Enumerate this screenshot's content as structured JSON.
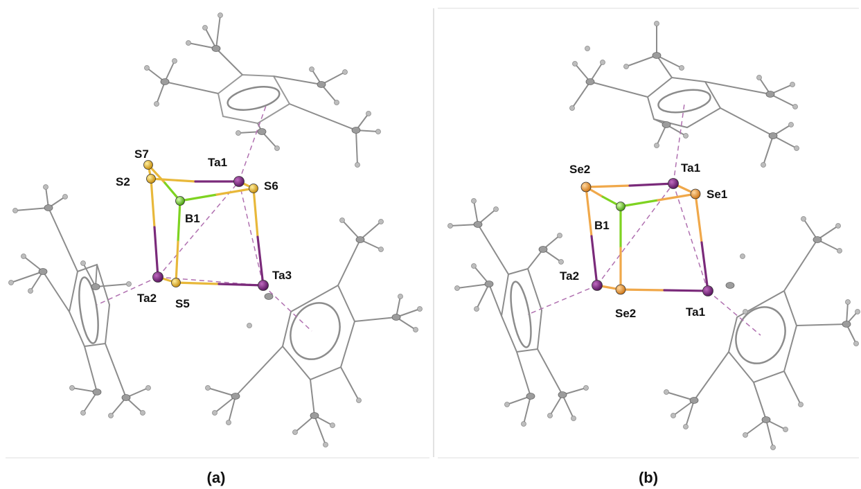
{
  "panels": [
    {
      "caption": "(a)",
      "atoms": [
        "S7",
        "S2",
        "Ta1",
        "S6",
        "B1",
        "Ta3",
        "Ta2",
        "S5"
      ]
    },
    {
      "caption": "(b)",
      "atoms": [
        "Se2",
        "Ta1",
        "Se1",
        "B1",
        "Ta2",
        "Se2",
        "Ta1"
      ]
    }
  ],
  "colors": {
    "tantalum": "#7a2a7a",
    "sulfur": "#e8b83a",
    "selenium": "#f0a84a",
    "boron": "#7ed321",
    "carbon": "#8a8a8a",
    "hydrogen": "#bdbdbd",
    "dashed_bond": "#b070b0"
  }
}
